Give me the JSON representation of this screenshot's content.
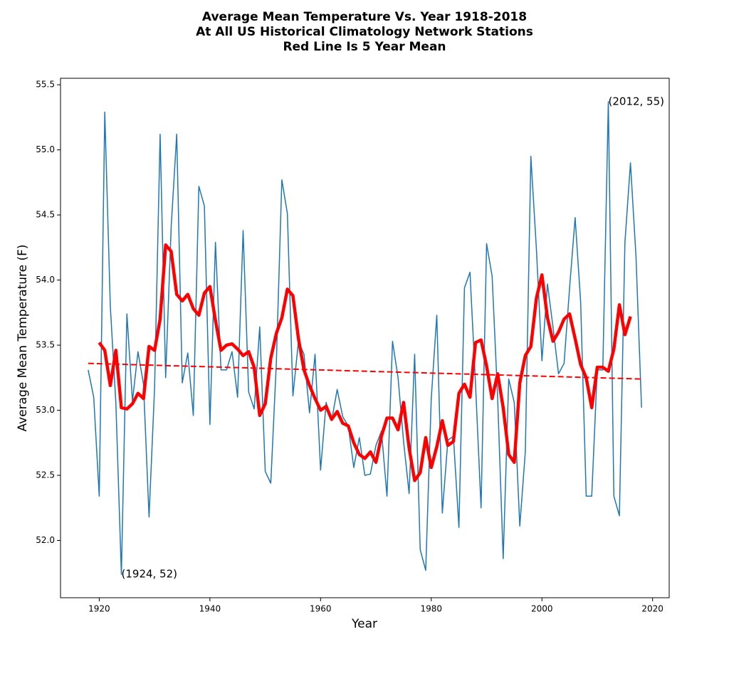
{
  "chart_data": {
    "type": "line",
    "title": [
      "Average Mean Temperature Vs. Year 1918-2018",
      "At All US Historical Climatology Network Stations",
      "Red Line Is 5 Year Mean"
    ],
    "xlabel": "Year",
    "ylabel": "Average Mean Temperature (F)",
    "xlim": [
      1913,
      2023
    ],
    "ylim": [
      51.56,
      55.55
    ],
    "xticks": [
      1920,
      1940,
      1960,
      1980,
      2000,
      2020
    ],
    "yticks": [
      {
        "value": 52,
        "label": "52.0"
      },
      52.5,
      {
        "value": 53,
        "label": "53.0"
      },
      53.5,
      {
        "value": 54,
        "label": "54.0"
      },
      54.5,
      {
        "value": 55,
        "label": "55.0"
      },
      55.5
    ],
    "grid": false,
    "series": [
      {
        "color": "#1f77b4",
        "linewidth": 1.5,
        "linestyle": "solid",
        "x": [
          1918,
          1919,
          1920,
          1921,
          1922,
          1923,
          1924,
          1925,
          1926,
          1927,
          1928,
          1929,
          1930,
          1931,
          1932,
          1933,
          1934,
          1935,
          1936,
          1937,
          1938,
          1939,
          1940,
          1941,
          1942,
          1943,
          1944,
          1945,
          1946,
          1947,
          1948,
          1949,
          1950,
          1951,
          1952,
          1953,
          1954,
          1955,
          1956,
          1957,
          1958,
          1959,
          1960,
          1961,
          1962,
          1963,
          1964,
          1965,
          1966,
          1967,
          1968,
          1969,
          1970,
          1971,
          1972,
          1973,
          1974,
          1975,
          1976,
          1977,
          1978,
          1979,
          1980,
          1981,
          1982,
          1983,
          1984,
          1985,
          1986,
          1987,
          1988,
          1989,
          1990,
          1991,
          1992,
          1993,
          1994,
          1995,
          1996,
          1997,
          1998,
          1999,
          2000,
          2001,
          2002,
          2003,
          2004,
          2005,
          2006,
          2007,
          2008,
          2009,
          2010,
          2011,
          2012,
          2013,
          2014,
          2015,
          2016,
          2017,
          2018
        ],
        "values": [
          53.31,
          53.1,
          52.34,
          55.29,
          53.8,
          53.06,
          51.74,
          53.74,
          53.07,
          53.45,
          53.2,
          52.18,
          53.17,
          55.12,
          53.25,
          54.41,
          55.12,
          53.21,
          53.44,
          52.96,
          54.72,
          54.57,
          52.89,
          54.29,
          53.31,
          53.31,
          53.45,
          53.1,
          54.38,
          53.14,
          53.01,
          53.64,
          52.53,
          52.44,
          53.36,
          54.77,
          54.51,
          53.11,
          53.53,
          53.43,
          52.98,
          53.43,
          52.54,
          53.06,
          52.92,
          53.16,
          52.95,
          52.88,
          52.56,
          52.79,
          52.5,
          52.51,
          52.73,
          52.84,
          52.34,
          53.53,
          53.25,
          52.76,
          52.36,
          53.43,
          51.93,
          51.77,
          53.09,
          53.73,
          52.21,
          52.77,
          52.8,
          52.1,
          53.94,
          54.06,
          53.2,
          52.25,
          54.28,
          54.03,
          53.09,
          51.86,
          53.24,
          53.06,
          52.11,
          52.68,
          54.95,
          54.24,
          53.38,
          53.97,
          53.64,
          53.28,
          53.36,
          53.94,
          54.48,
          53.83,
          52.34,
          52.34,
          53.31,
          53.31,
          55.37,
          52.34,
          52.19,
          54.29,
          54.9,
          54.18,
          53.02
        ]
      },
      {
        "color": "#ff0000",
        "linewidth": 4.5,
        "linestyle": "solid",
        "x": [
          1920,
          1921,
          1922,
          1923,
          1924,
          1925,
          1926,
          1927,
          1928,
          1929,
          1930,
          1931,
          1932,
          1933,
          1934,
          1935,
          1936,
          1937,
          1938,
          1939,
          1940,
          1941,
          1942,
          1943,
          1944,
          1945,
          1946,
          1947,
          1948,
          1949,
          1950,
          1951,
          1952,
          1953,
          1954,
          1955,
          1956,
          1957,
          1958,
          1959,
          1960,
          1961,
          1962,
          1963,
          1964,
          1965,
          1966,
          1967,
          1968,
          1969,
          1970,
          1971,
          1972,
          1973,
          1974,
          1975,
          1976,
          1977,
          1978,
          1979,
          1980,
          1981,
          1982,
          1983,
          1984,
          1985,
          1986,
          1987,
          1988,
          1989,
          1990,
          1991,
          1992,
          1993,
          1994,
          1995,
          1996,
          1997,
          1998,
          1999,
          2000,
          2001,
          2002,
          2003,
          2004,
          2005,
          2006,
          2007,
          2008,
          2009,
          2010,
          2011,
          2012,
          2013,
          2014,
          2015,
          2016
        ],
        "values": [
          53.52,
          53.46,
          53.19,
          53.46,
          53.02,
          53.01,
          53.05,
          53.13,
          53.09,
          53.49,
          53.46,
          53.7,
          54.27,
          54.22,
          53.89,
          53.84,
          53.89,
          53.78,
          53.73,
          53.9,
          53.95,
          53.69,
          53.46,
          53.5,
          53.51,
          53.47,
          53.42,
          53.45,
          53.33,
          52.96,
          53.05,
          53.4,
          53.59,
          53.71,
          53.93,
          53.88,
          53.55,
          53.31,
          53.19,
          53.09,
          53.0,
          53.03,
          52.93,
          52.99,
          52.9,
          52.88,
          52.75,
          52.66,
          52.63,
          52.68,
          52.6,
          52.8,
          52.94,
          52.94,
          52.85,
          53.06,
          52.71,
          52.46,
          52.52,
          52.79,
          52.56,
          52.72,
          52.92,
          52.73,
          52.76,
          53.13,
          53.2,
          53.1,
          53.52,
          53.54,
          53.34,
          53.09,
          53.28,
          53.02,
          52.66,
          52.6,
          53.21,
          53.42,
          53.49,
          53.86,
          54.04,
          53.71,
          53.53,
          53.6,
          53.7,
          53.74,
          53.55,
          53.35,
          53.25,
          53.02,
          53.33,
          53.33,
          53.3,
          53.47,
          53.81,
          53.58,
          53.72
        ]
      },
      {
        "color": "#ff0000",
        "linewidth": 2,
        "linestyle": "dashed",
        "x": [
          1918,
          2018
        ],
        "values": [
          53.36,
          53.24
        ]
      }
    ],
    "annotations": [
      {
        "text": "(2012, 55)",
        "x": 2012,
        "y": 55.37
      },
      {
        "text": "(1924, 52)",
        "x": 1924,
        "y": 51.74
      }
    ]
  }
}
